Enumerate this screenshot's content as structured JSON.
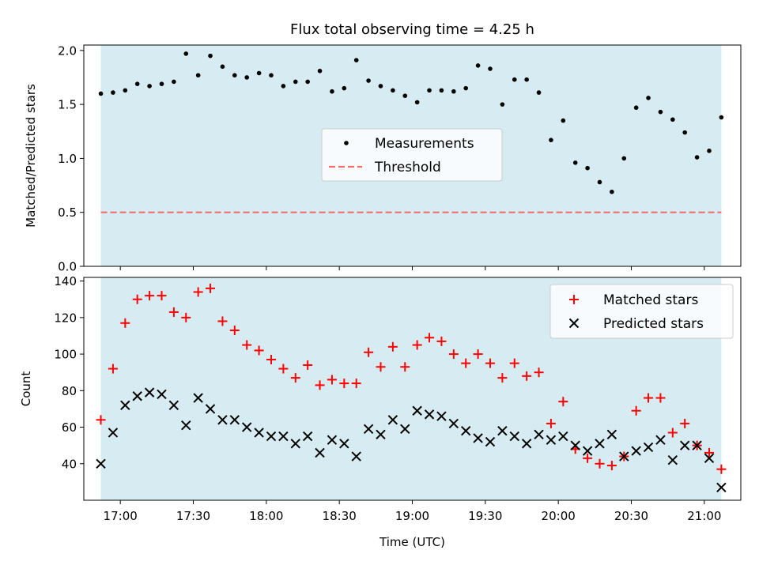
{
  "chart_data": [
    {
      "type": "scatter",
      "title": "Flux total observing time = 4.25 h",
      "ylabel": "Matched/Predicted stars",
      "ylim": [
        0,
        2.05
      ],
      "yticks": [
        0.0,
        0.5,
        1.0,
        1.5,
        2.0
      ],
      "ytick_labels": [
        "0.0",
        "0.5",
        "1.0",
        "1.5",
        "2.0"
      ],
      "observing_window": [
        "16:52",
        "21:07"
      ],
      "legend": {
        "position": "center",
        "entries": [
          "Measurements",
          "Threshold"
        ]
      },
      "threshold": {
        "name": "Threshold",
        "value": 0.5,
        "color": "#f26d6d"
      },
      "series": [
        {
          "name": "Measurements",
          "marker": "dot",
          "color": "#000000",
          "x": [
            "16:52",
            "16:57",
            "17:02",
            "17:07",
            "17:12",
            "17:17",
            "17:22",
            "17:27",
            "17:32",
            "17:37",
            "17:42",
            "17:47",
            "17:52",
            "17:57",
            "18:02",
            "18:07",
            "18:12",
            "18:17",
            "18:22",
            "18:27",
            "18:32",
            "18:37",
            "18:42",
            "18:47",
            "18:52",
            "18:57",
            "19:02",
            "19:07",
            "19:12",
            "19:17",
            "19:22",
            "19:27",
            "19:32",
            "19:37",
            "19:42",
            "19:47",
            "19:52",
            "19:57",
            "20:02",
            "20:07",
            "20:12",
            "20:17",
            "20:22",
            "20:27",
            "20:32",
            "20:37",
            "20:42",
            "20:47",
            "20:52",
            "20:57",
            "21:02",
            "21:07"
          ],
          "values": [
            1.6,
            1.61,
            1.63,
            1.69,
            1.67,
            1.69,
            1.71,
            1.97,
            1.77,
            1.95,
            1.85,
            1.77,
            1.75,
            1.79,
            1.77,
            1.67,
            1.71,
            1.71,
            1.81,
            1.62,
            1.65,
            1.91,
            1.72,
            1.67,
            1.63,
            1.58,
            1.52,
            1.63,
            1.63,
            1.62,
            1.65,
            1.86,
            1.83,
            1.5,
            1.73,
            1.73,
            1.61,
            1.17,
            1.35,
            0.96,
            0.91,
            0.78,
            0.69,
            1.0,
            1.47,
            1.56,
            1.43,
            1.36,
            1.24,
            1.01,
            1.07,
            1.38
          ]
        }
      ]
    },
    {
      "type": "scatter",
      "xlabel": "Time (UTC)",
      "ylabel": "Count",
      "ylim": [
        20,
        142
      ],
      "yticks": [
        40,
        60,
        80,
        100,
        120,
        140
      ],
      "ytick_labels": [
        "40",
        "60",
        "80",
        "100",
        "120",
        "140"
      ],
      "xticks": [
        "17:00",
        "17:30",
        "18:00",
        "18:30",
        "19:00",
        "19:30",
        "20:00",
        "20:30",
        "21:00"
      ],
      "xlim": [
        "16:45",
        "21:15"
      ],
      "observing_window": [
        "16:52",
        "21:07"
      ],
      "legend": {
        "position": "top-right",
        "entries": [
          "Matched stars",
          "Predicted stars"
        ]
      },
      "series": [
        {
          "name": "Matched stars",
          "marker": "plus",
          "color": "#ff0000",
          "x": [
            "16:52",
            "16:57",
            "17:02",
            "17:07",
            "17:12",
            "17:17",
            "17:22",
            "17:27",
            "17:32",
            "17:37",
            "17:42",
            "17:47",
            "17:52",
            "17:57",
            "18:02",
            "18:07",
            "18:12",
            "18:17",
            "18:22",
            "18:27",
            "18:32",
            "18:37",
            "18:42",
            "18:47",
            "18:52",
            "18:57",
            "19:02",
            "19:07",
            "19:12",
            "19:17",
            "19:22",
            "19:27",
            "19:32",
            "19:37",
            "19:42",
            "19:47",
            "19:52",
            "19:57",
            "20:02",
            "20:07",
            "20:12",
            "20:17",
            "20:22",
            "20:27",
            "20:32",
            "20:37",
            "20:42",
            "20:47",
            "20:52",
            "20:57",
            "21:02",
            "21:07"
          ],
          "values": [
            64,
            92,
            117,
            130,
            132,
            132,
            123,
            120,
            134,
            136,
            118,
            113,
            105,
            102,
            97,
            92,
            87,
            94,
            83,
            86,
            84,
            84,
            101,
            93,
            104,
            93,
            105,
            109,
            107,
            100,
            95,
            100,
            95,
            87,
            95,
            88,
            90,
            62,
            74,
            48,
            43,
            40,
            39,
            44,
            69,
            76,
            76,
            57,
            62,
            50,
            46,
            37
          ]
        },
        {
          "name": "Predicted stars",
          "marker": "x",
          "color": "#000000",
          "x": [
            "16:52",
            "16:57",
            "17:02",
            "17:07",
            "17:12",
            "17:17",
            "17:22",
            "17:27",
            "17:32",
            "17:37",
            "17:42",
            "17:47",
            "17:52",
            "17:57",
            "18:02",
            "18:07",
            "18:12",
            "18:17",
            "18:22",
            "18:27",
            "18:32",
            "18:37",
            "18:42",
            "18:47",
            "18:52",
            "18:57",
            "19:02",
            "19:07",
            "19:12",
            "19:17",
            "19:22",
            "19:27",
            "19:32",
            "19:37",
            "19:42",
            "19:47",
            "19:52",
            "19:57",
            "20:02",
            "20:07",
            "20:12",
            "20:17",
            "20:22",
            "20:27",
            "20:32",
            "20:37",
            "20:42",
            "20:47",
            "20:52",
            "20:57",
            "21:02",
            "21:07"
          ],
          "values": [
            40,
            57,
            72,
            77,
            79,
            78,
            72,
            61,
            76,
            70,
            64,
            64,
            60,
            57,
            55,
            55,
            51,
            55,
            46,
            53,
            51,
            44,
            59,
            56,
            64,
            59,
            69,
            67,
            66,
            62,
            58,
            54,
            52,
            58,
            55,
            51,
            56,
            53,
            55,
            50,
            47,
            51,
            56,
            44,
            47,
            49,
            53,
            42,
            50,
            50,
            43,
            27
          ]
        }
      ]
    }
  ]
}
